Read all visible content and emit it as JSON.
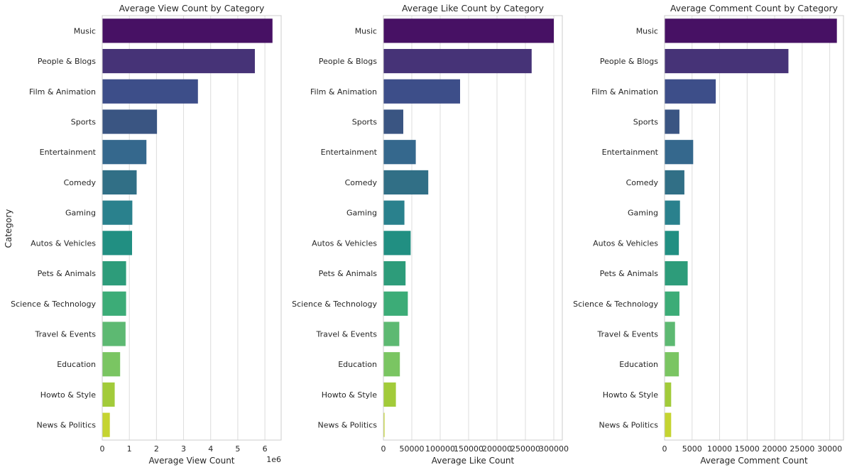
{
  "figure_ylabel": "Category",
  "chart_data": [
    {
      "type": "bar",
      "orientation": "horizontal",
      "title": "Average View Count by Category",
      "xlabel": "Average View Count",
      "ylabel": "Category",
      "x_offset_label": "1e6",
      "xlim": [
        0,
        6.6
      ],
      "xticks": [
        0,
        1,
        2,
        3,
        4,
        5,
        6
      ],
      "xtick_labels": [
        "0",
        "1",
        "2",
        "3",
        "4",
        "5",
        "6"
      ],
      "categories": [
        "Music",
        "People & Blogs",
        "Film & Animation",
        "Sports",
        "Entertainment",
        "Comedy",
        "Gaming",
        "Autos & Vehicles",
        "Pets & Animals",
        "Science & Technology",
        "Travel & Events",
        "Education",
        "Howto & Style",
        "News & Politics"
      ],
      "values": [
        6.28,
        5.63,
        3.53,
        2.02,
        1.63,
        1.27,
        1.11,
        1.1,
        0.88,
        0.88,
        0.86,
        0.66,
        0.46,
        0.28
      ],
      "grid": "vertical"
    },
    {
      "type": "bar",
      "orientation": "horizontal",
      "title": "Average Like Count by Category",
      "xlabel": "Average Like Count",
      "xlim": [
        0,
        315000
      ],
      "xticks": [
        0,
        50000,
        100000,
        150000,
        200000,
        250000,
        300000
      ],
      "xtick_labels": [
        "0",
        "50000",
        "100000",
        "150000",
        "200000",
        "250000",
        "300000"
      ],
      "categories": [
        "Music",
        "People & Blogs",
        "Film & Animation",
        "Sports",
        "Entertainment",
        "Comedy",
        "Gaming",
        "Autos & Vehicles",
        "Pets & Animals",
        "Science & Technology",
        "Travel & Events",
        "Education",
        "Howto & Style",
        "News & Politics"
      ],
      "values": [
        300000,
        261000,
        135000,
        35000,
        57000,
        79000,
        37000,
        48000,
        39000,
        43000,
        28000,
        29000,
        22000,
        2000
      ],
      "grid": "vertical"
    },
    {
      "type": "bar",
      "orientation": "horizontal",
      "title": "Average Comment Count by Category",
      "xlabel": "Average Comment Count",
      "xlim": [
        0,
        32500
      ],
      "xticks": [
        0,
        5000,
        10000,
        15000,
        20000,
        25000,
        30000
      ],
      "xtick_labels": [
        "0",
        "5000",
        "10000",
        "15000",
        "20000",
        "25000",
        "30000"
      ],
      "categories": [
        "Music",
        "People & Blogs",
        "Film & Animation",
        "Sports",
        "Entertainment",
        "Comedy",
        "Gaming",
        "Autos & Vehicles",
        "Pets & Animals",
        "Science & Technology",
        "Travel & Events",
        "Education",
        "Howto & Style",
        "News & Politics"
      ],
      "values": [
        31300,
        22500,
        9300,
        2700,
        5200,
        3600,
        2800,
        2600,
        4200,
        2700,
        1900,
        2600,
        1200,
        1200
      ],
      "grid": "vertical"
    }
  ],
  "colors": [
    "#440154",
    "#481a6c",
    "#472f7d",
    "#414487",
    "#39568c",
    "#31688e",
    "#2a788e",
    "#23888e",
    "#1f988b",
    "#22a884",
    "#35b779",
    "#54c568",
    "#7ad151",
    "#a5db36",
    "#d2e21b"
  ],
  "palette": [
    "#471164",
    "#463377",
    "#3d4e89",
    "#3a5582",
    "#35688d",
    "#316f86",
    "#2a818d",
    "#218f82",
    "#2d9c7a",
    "#3cac77",
    "#5db972",
    "#7ac562",
    "#a2cb3a",
    "#c5d431"
  ]
}
